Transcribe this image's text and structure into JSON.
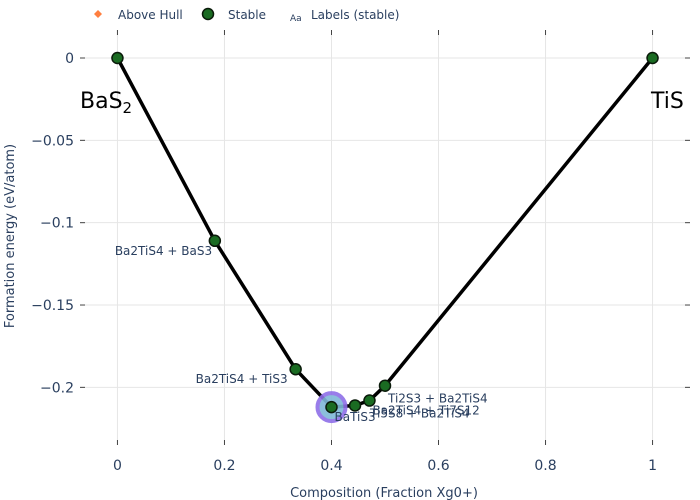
{
  "chart_data": {
    "type": "scatter",
    "xlabel": "Composition (Fraction Xg0+)",
    "ylabel": "Formation energy (eV/atom)",
    "xlim": [
      -0.07,
      1.07
    ],
    "ylim": [
      -0.235,
      0.017
    ],
    "x_ticks": [
      0,
      0.2,
      0.4,
      0.6,
      0.8,
      1
    ],
    "x_tick_labels": [
      "0",
      "0.2",
      "0.4",
      "0.6",
      "0.8",
      "1"
    ],
    "y_ticks": [
      0,
      -0.05,
      -0.1,
      -0.15,
      -0.2
    ],
    "y_tick_labels": [
      "0",
      "−0.05",
      "−0.1",
      "−0.15",
      "−0.2"
    ],
    "grid": true,
    "legend": {
      "placement": "top-left",
      "entries": [
        "Above Hull",
        "Stable",
        "Labels (stable)"
      ],
      "labels_marker": "Aa"
    },
    "colors": {
      "stable_fill": "#1a6b22",
      "stable_edge": "#0a1a0a",
      "above_hull": "#ff7f3f",
      "hull_line": "#000000",
      "highlight_ring": "#8f6fe8",
      "highlight_fill": "#7fb8d8"
    },
    "stable_points": [
      {
        "x": 0.0,
        "y": 0.0
      },
      {
        "x": 0.182,
        "y": -0.111
      },
      {
        "x": 0.333,
        "y": -0.189
      },
      {
        "x": 0.4,
        "y": -0.212
      },
      {
        "x": 0.444,
        "y": -0.211
      },
      {
        "x": 0.471,
        "y": -0.208
      },
      {
        "x": 0.5,
        "y": -0.199
      },
      {
        "x": 1.0,
        "y": 0.0
      }
    ],
    "highlight_point": {
      "x": 0.4,
      "y": -0.212
    },
    "point_labels": [
      {
        "text": "Ba2TiS4 + BaS3",
        "x": 0.182,
        "y": -0.111,
        "pos": "below-left"
      },
      {
        "text": "Ba2TiS4 + TiS3",
        "x": 0.333,
        "y": -0.189,
        "pos": "below-left"
      },
      {
        "text": "BaTiS3",
        "x": 0.4,
        "y": -0.212,
        "pos": "below"
      },
      {
        "text": "Ti5S8 + Ba2TiS4",
        "x": 0.444,
        "y": -0.211,
        "pos": "right"
      },
      {
        "text": "Ba2TiS4 + Ti7S12",
        "x": 0.471,
        "y": -0.208,
        "pos": "below"
      },
      {
        "text": "Ti2S3 + Ba2TiS4",
        "x": 0.5,
        "y": -0.199,
        "pos": "below-right"
      }
    ],
    "end_labels": {
      "left": {
        "base": "BaS",
        "sub": "2"
      },
      "right": {
        "base": "TiS",
        "sub": ""
      }
    }
  }
}
